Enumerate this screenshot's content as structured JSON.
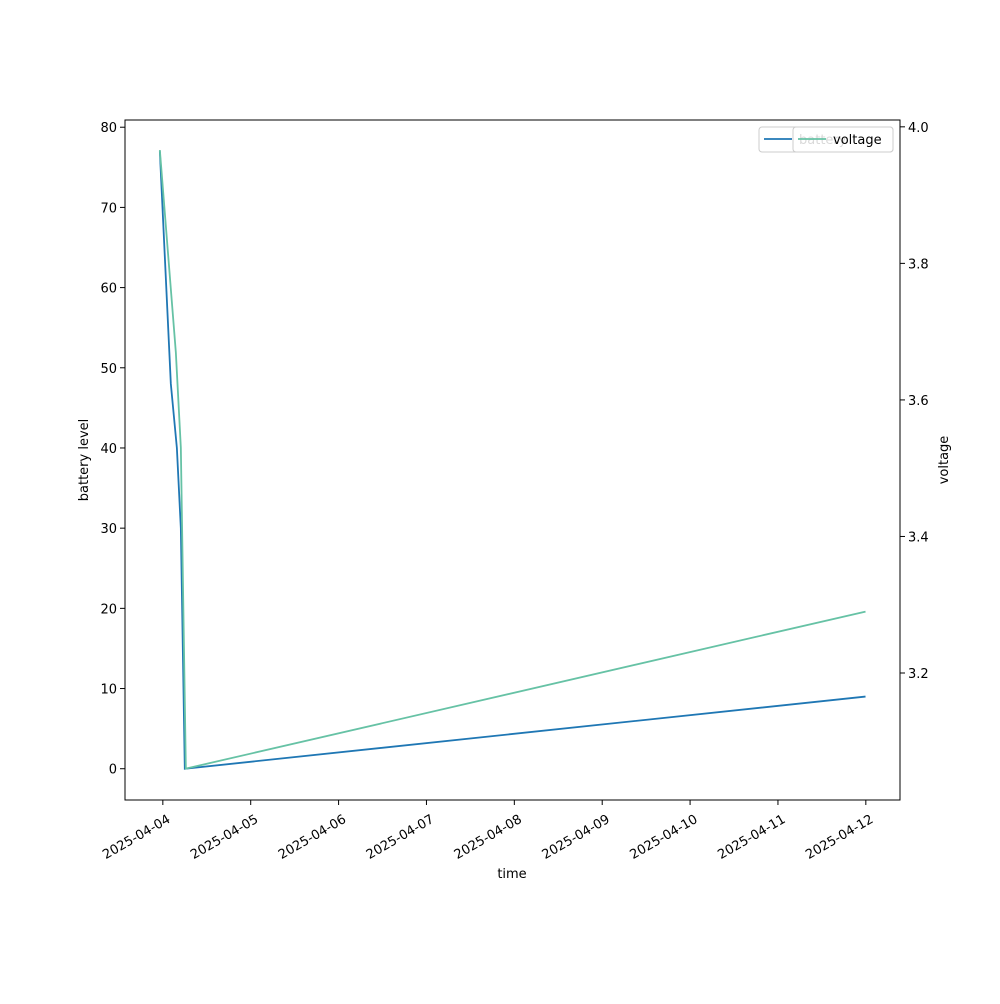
{
  "chart_data": {
    "type": "line",
    "x_label": "time",
    "y_label": "battery level",
    "y2_label": "voltage",
    "xlim": [
      "2025-04-03T13:40",
      "2025-04-12T09:20"
    ],
    "xticks": [
      "2025-04-04",
      "2025-04-05",
      "2025-04-06",
      "2025-04-07",
      "2025-04-08",
      "2025-04-09",
      "2025-04-10",
      "2025-04-11",
      "2025-04-12"
    ],
    "ylim": [
      -3.9,
      80.9
    ],
    "yticks": [
      0,
      10,
      20,
      30,
      40,
      50,
      60,
      70,
      80
    ],
    "y2lim": [
      3.014,
      4.01
    ],
    "y2ticks": [
      3.2,
      3.4,
      3.6,
      3.8,
      {
        "value": 4,
        "label": "4.0"
      }
    ],
    "legend": "upper right",
    "series": [
      {
        "name": "battery",
        "color": "#1f77b4",
        "x": [
          "2025-04-03T23:11",
          "2025-04-04T02:11",
          "2025-04-04T03:50",
          "2025-04-04T04:55",
          "2025-04-04T06:00",
          "2025-04-11T23:55"
        ],
        "values": [
          77,
          48,
          40,
          30,
          0,
          9
        ]
      },
      {
        "name": "voltage",
        "color": "#66c2a5",
        "axis": "y2",
        "x": [
          "2025-04-03T23:11",
          "2025-04-04T03:33",
          "2025-04-04T04:55",
          "2025-04-04T06:17",
          "2025-04-11T23:55"
        ],
        "values": [
          3.966,
          3.67,
          3.53,
          3.06,
          3.29
        ]
      }
    ]
  }
}
